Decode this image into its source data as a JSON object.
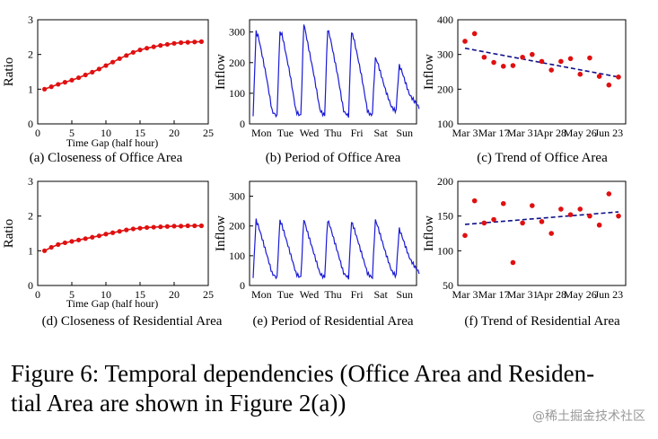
{
  "figure_caption": "Figure 6: Temporal dependencies (Office Area and Residential Area are shown in Figure 2(a))",
  "caption_line1": "Figure 6: Temporal dependencies (Office Area and Residen-",
  "caption_line2": "tial Area are shown in Figure 2(a))",
  "watermark": "@稀土掘金技术社区",
  "chart_data": [
    {
      "type": "line",
      "id": "a",
      "caption": "(a) Closeness of Office Area",
      "xlabel": "Time Gap (half hour)",
      "ylabel": "Ratio",
      "xlim": [
        0,
        25
      ],
      "ylim": [
        0,
        3
      ],
      "xticks": [
        0,
        5,
        10,
        15,
        20,
        25
      ],
      "yticks": [
        0,
        1,
        2,
        3
      ],
      "markers": true,
      "series": [
        {
          "name": "closeness",
          "x": [
            1,
            2,
            3,
            4,
            5,
            6,
            7,
            8,
            9,
            10,
            11,
            12,
            13,
            14,
            15,
            16,
            17,
            18,
            19,
            20,
            21,
            22,
            23,
            24
          ],
          "y": [
            1.0,
            1.07,
            1.14,
            1.2,
            1.26,
            1.33,
            1.41,
            1.49,
            1.58,
            1.68,
            1.78,
            1.88,
            1.97,
            2.06,
            2.13,
            2.18,
            2.22,
            2.26,
            2.29,
            2.32,
            2.34,
            2.35,
            2.36,
            2.37
          ]
        }
      ]
    },
    {
      "type": "line",
      "id": "b",
      "caption": "(b) Period of Office Area",
      "xlabel": "",
      "ylabel": "Inflow",
      "ylim": [
        0,
        340
      ],
      "yticks": [
        0,
        100,
        200,
        300
      ],
      "categories": [
        "Mon",
        "Tue",
        "Wed",
        "Thu",
        "Fri",
        "Sat",
        "Sun"
      ],
      "series": [
        {
          "name": "inflow",
          "pattern": [
            [
              300,
              285,
              40,
              25
            ],
            [
              300,
              290,
              40,
              25
            ],
            [
              330,
              290,
              45,
              25
            ],
            [
              310,
              285,
              40,
              25
            ],
            [
              300,
              280,
              40,
              25
            ],
            [
              215,
              200,
              55,
              40
            ],
            [
              190,
              175,
              70,
              50
            ]
          ]
        }
      ]
    },
    {
      "type": "scatter",
      "id": "c",
      "caption": "(c) Trend of Office Area",
      "xlabel": "",
      "ylabel": "Inflow",
      "ylim": [
        100,
        400
      ],
      "yticks": [
        100,
        200,
        300,
        400
      ],
      "xlim": [
        0,
        16
      ],
      "xticklabels": [
        "Mar 3",
        "Mar 17",
        "Mar 31",
        "Apr 28",
        "May 26",
        "Jun 23"
      ],
      "xtickpos": [
        0,
        3,
        6,
        9,
        12,
        15
      ],
      "points": [
        [
          0,
          338
        ],
        [
          1,
          360
        ],
        [
          2,
          292
        ],
        [
          3,
          277
        ],
        [
          4,
          266
        ],
        [
          5,
          268
        ],
        [
          6,
          292
        ],
        [
          7,
          300
        ],
        [
          8,
          280
        ],
        [
          9,
          255
        ],
        [
          10,
          280
        ],
        [
          11,
          288
        ],
        [
          12,
          243
        ],
        [
          13,
          290
        ],
        [
          14,
          237
        ],
        [
          15,
          212
        ],
        [
          16,
          235
        ]
      ],
      "trend": [
        [
          0,
          318
        ],
        [
          16,
          235
        ]
      ]
    },
    {
      "type": "line",
      "id": "d",
      "caption": "(d) Closeness of Residential Area",
      "xlabel": "Time Gap (half hour)",
      "ylabel": "Ratio",
      "xlim": [
        0,
        25
      ],
      "ylim": [
        0,
        3
      ],
      "xticks": [
        0,
        5,
        10,
        15,
        20,
        25
      ],
      "yticks": [
        0,
        1,
        2,
        3
      ],
      "markers": true,
      "series": [
        {
          "name": "closeness",
          "x": [
            1,
            2,
            3,
            4,
            5,
            6,
            7,
            8,
            9,
            10,
            11,
            12,
            13,
            14,
            15,
            16,
            17,
            18,
            19,
            20,
            21,
            22,
            23,
            24
          ],
          "y": [
            1.0,
            1.1,
            1.18,
            1.23,
            1.27,
            1.31,
            1.35,
            1.39,
            1.43,
            1.48,
            1.52,
            1.56,
            1.6,
            1.63,
            1.65,
            1.67,
            1.68,
            1.69,
            1.7,
            1.71,
            1.71,
            1.72,
            1.72,
            1.72
          ]
        }
      ]
    },
    {
      "type": "line",
      "id": "e",
      "caption": "(e) Period of Residential Area",
      "xlabel": "",
      "ylabel": "Inflow",
      "ylim": [
        0,
        350
      ],
      "yticks": [
        0,
        100,
        200,
        300
      ],
      "categories": [
        "Mon",
        "Tue",
        "Wed",
        "Thu",
        "Fri",
        "Sat",
        "Sun"
      ],
      "series": [
        {
          "name": "inflow",
          "pattern": [
            [
              220,
              200,
              40,
              25
            ],
            [
              220,
              200,
              40,
              25
            ],
            [
              225,
              195,
              40,
              25
            ],
            [
              220,
              200,
              40,
              25
            ],
            [
              215,
              195,
              40,
              25
            ],
            [
              220,
              200,
              50,
              30
            ],
            [
              190,
              170,
              60,
              40
            ]
          ]
        }
      ]
    },
    {
      "type": "scatter",
      "id": "f",
      "caption": "(f) Trend of Residential Area",
      "xlabel": "",
      "ylabel": "Inflow",
      "ylim": [
        50,
        200
      ],
      "yticks": [
        50,
        100,
        150,
        200
      ],
      "xlim": [
        0,
        16
      ],
      "xticklabels": [
        "Mar 3",
        "Mar 17",
        "Mar 31",
        "Apr 28",
        "May 26",
        "Jun 23"
      ],
      "xtickpos": [
        0,
        3,
        6,
        9,
        12,
        15
      ],
      "points": [
        [
          0,
          122
        ],
        [
          1,
          172
        ],
        [
          2,
          140
        ],
        [
          3,
          145
        ],
        [
          4,
          168
        ],
        [
          5,
          83
        ],
        [
          6,
          140
        ],
        [
          7,
          165
        ],
        [
          8,
          142
        ],
        [
          9,
          125
        ],
        [
          10,
          160
        ],
        [
          11,
          152
        ],
        [
          12,
          160
        ],
        [
          13,
          150
        ],
        [
          14,
          137
        ],
        [
          15,
          182
        ],
        [
          16,
          150
        ]
      ],
      "trend": [
        [
          0,
          138
        ],
        [
          16,
          156
        ]
      ]
    }
  ]
}
